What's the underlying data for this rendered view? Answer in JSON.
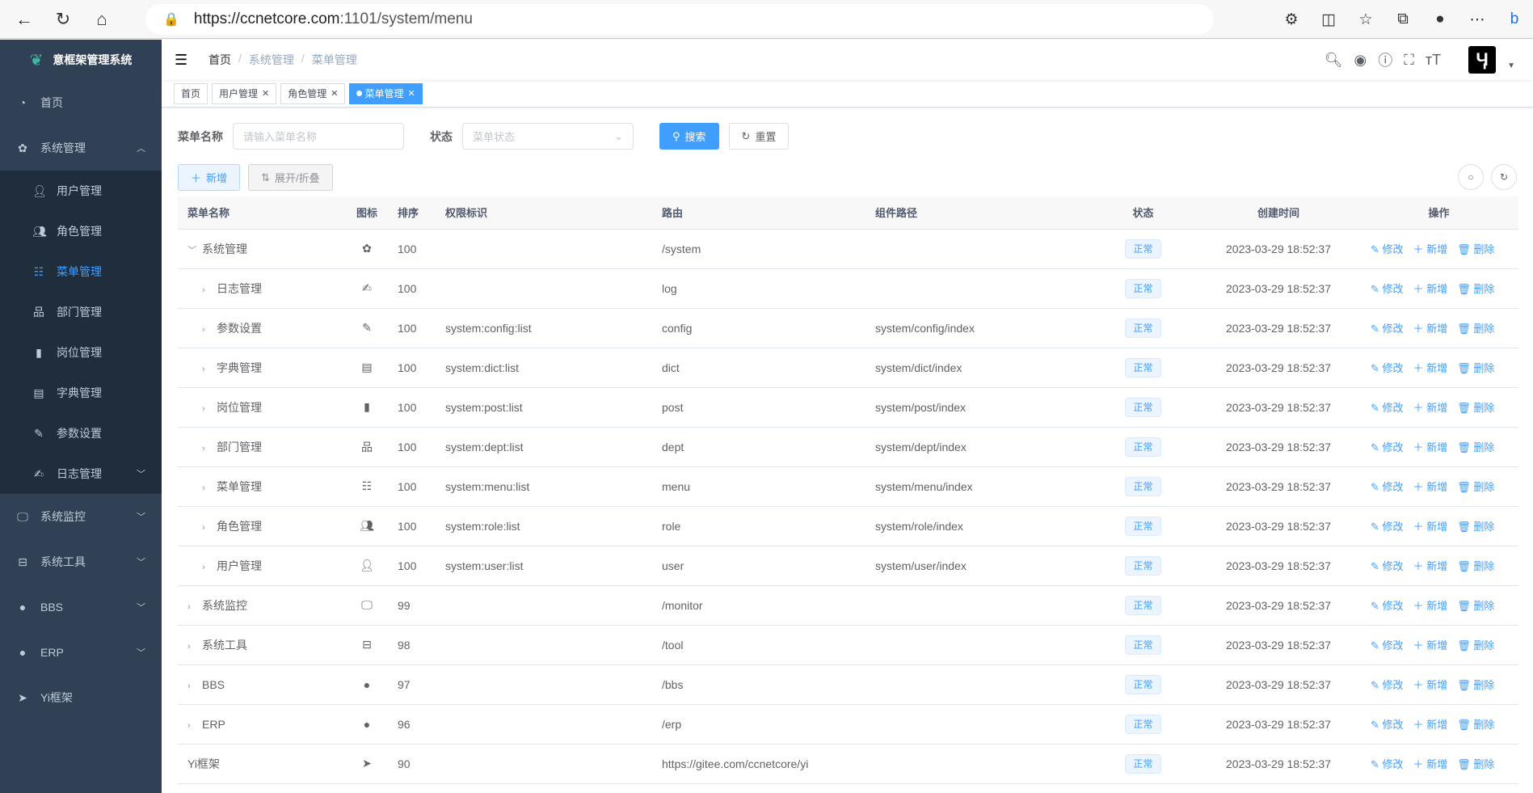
{
  "browser": {
    "url_host": "https://ccnetcore.com",
    "url_path": ":1101/system/menu"
  },
  "sidebar": {
    "title": "意框架管理系统",
    "items": [
      {
        "label": "首页",
        "icon": "dashboard-icon"
      },
      {
        "label": "系统管理",
        "icon": "gear-icon",
        "expanded": true,
        "children": [
          {
            "label": "用户管理",
            "icon": "user-icon"
          },
          {
            "label": "角色管理",
            "icon": "peoples-icon"
          },
          {
            "label": "菜单管理",
            "icon": "tree-table-icon",
            "active": true
          },
          {
            "label": "部门管理",
            "icon": "tree-icon"
          },
          {
            "label": "岗位管理",
            "icon": "post-icon"
          },
          {
            "label": "字典管理",
            "icon": "dict-icon"
          },
          {
            "label": "参数设置",
            "icon": "edit-icon"
          },
          {
            "label": "日志管理",
            "icon": "log-icon",
            "has_children": true
          }
        ]
      },
      {
        "label": "系统监控",
        "icon": "monitor-icon"
      },
      {
        "label": "系统工具",
        "icon": "tool-icon"
      },
      {
        "label": "BBS",
        "icon": "globe-icon"
      },
      {
        "label": "ERP",
        "icon": "globe-icon"
      },
      {
        "label": "Yi框架",
        "icon": "send-icon"
      }
    ]
  },
  "breadcrumb": [
    "首页",
    "系统管理",
    "菜单管理"
  ],
  "tags": [
    {
      "label": "首页"
    },
    {
      "label": "用户管理"
    },
    {
      "label": "角色管理"
    },
    {
      "label": "菜单管理",
      "active": true
    }
  ],
  "search": {
    "name_label": "菜单名称",
    "name_placeholder": "请输入菜单名称",
    "status_label": "状态",
    "status_placeholder": "菜单状态",
    "search_btn": "搜索",
    "reset_btn": "重置"
  },
  "toolbar": {
    "add": "新增",
    "expand": "展开/折叠"
  },
  "accent": "#409eff",
  "table": {
    "headers": [
      "菜单名称",
      "图标",
      "排序",
      "权限标识",
      "路由",
      "组件路径",
      "状态",
      "创建时间",
      "操作"
    ],
    "actions": [
      "修改",
      "新增",
      "删除"
    ],
    "rows": [
      {
        "name": "系统管理",
        "level": 0,
        "tree": "expanded",
        "icon": "gear-icon",
        "order": "100",
        "perms": "",
        "path": "/system",
        "component": "",
        "status": "正常",
        "time": "2023-03-29 18:52:37"
      },
      {
        "name": "日志管理",
        "level": 1,
        "tree": "collapsed",
        "icon": "log-icon",
        "order": "100",
        "perms": "",
        "path": "log",
        "component": "",
        "status": "正常",
        "time": "2023-03-29 18:52:37"
      },
      {
        "name": "参数设置",
        "level": 1,
        "tree": "collapsed",
        "icon": "edit-icon",
        "order": "100",
        "perms": "system:config:list",
        "path": "config",
        "component": "system/config/index",
        "status": "正常",
        "time": "2023-03-29 18:52:37"
      },
      {
        "name": "字典管理",
        "level": 1,
        "tree": "collapsed",
        "icon": "dict-icon",
        "order": "100",
        "perms": "system:dict:list",
        "path": "dict",
        "component": "system/dict/index",
        "status": "正常",
        "time": "2023-03-29 18:52:37"
      },
      {
        "name": "岗位管理",
        "level": 1,
        "tree": "collapsed",
        "icon": "post-icon",
        "order": "100",
        "perms": "system:post:list",
        "path": "post",
        "component": "system/post/index",
        "status": "正常",
        "time": "2023-03-29 18:52:37"
      },
      {
        "name": "部门管理",
        "level": 1,
        "tree": "collapsed",
        "icon": "tree-icon",
        "order": "100",
        "perms": "system:dept:list",
        "path": "dept",
        "component": "system/dept/index",
        "status": "正常",
        "time": "2023-03-29 18:52:37"
      },
      {
        "name": "菜单管理",
        "level": 1,
        "tree": "collapsed",
        "icon": "tree-table-icon",
        "order": "100",
        "perms": "system:menu:list",
        "path": "menu",
        "component": "system/menu/index",
        "status": "正常",
        "time": "2023-03-29 18:52:37"
      },
      {
        "name": "角色管理",
        "level": 1,
        "tree": "collapsed",
        "icon": "peoples-icon",
        "order": "100",
        "perms": "system:role:list",
        "path": "role",
        "component": "system/role/index",
        "status": "正常",
        "time": "2023-03-29 18:52:37"
      },
      {
        "name": "用户管理",
        "level": 1,
        "tree": "collapsed",
        "icon": "user-icon",
        "order": "100",
        "perms": "system:user:list",
        "path": "user",
        "component": "system/user/index",
        "status": "正常",
        "time": "2023-03-29 18:52:37"
      },
      {
        "name": "系统监控",
        "level": 0,
        "tree": "collapsed",
        "icon": "monitor-icon",
        "order": "99",
        "perms": "",
        "path": "/monitor",
        "component": "",
        "status": "正常",
        "time": "2023-03-29 18:52:37"
      },
      {
        "name": "系统工具",
        "level": 0,
        "tree": "collapsed",
        "icon": "tool-icon",
        "order": "98",
        "perms": "",
        "path": "/tool",
        "component": "",
        "status": "正常",
        "time": "2023-03-29 18:52:37"
      },
      {
        "name": "BBS",
        "level": 0,
        "tree": "collapsed",
        "icon": "globe-icon",
        "order": "97",
        "perms": "",
        "path": "/bbs",
        "component": "",
        "status": "正常",
        "time": "2023-03-29 18:52:37"
      },
      {
        "name": "ERP",
        "level": 0,
        "tree": "collapsed",
        "icon": "globe-icon",
        "order": "96",
        "perms": "",
        "path": "/erp",
        "component": "",
        "status": "正常",
        "time": "2023-03-29 18:52:37"
      },
      {
        "name": "Yi框架",
        "level": 0,
        "tree": "none",
        "icon": "send-icon",
        "order": "90",
        "perms": "",
        "path": "https://gitee.com/ccnetcore/yi",
        "component": "",
        "status": "正常",
        "time": "2023-03-29 18:52:37"
      }
    ]
  }
}
